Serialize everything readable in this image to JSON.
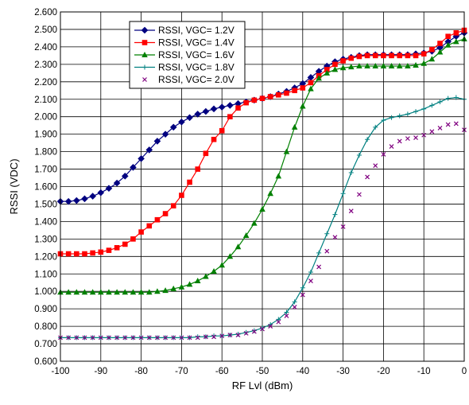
{
  "chart_data": {
    "type": "line",
    "title": "",
    "xlabel": "RF Lvl (dBm)",
    "ylabel": "RSSI (VDC)",
    "xlim": [
      -100,
      0
    ],
    "ylim": [
      0.6,
      2.6
    ],
    "x_ticks": [
      "-100",
      "-90",
      "-80",
      "-70",
      "-60",
      "-50",
      "-40",
      "-30",
      "-20",
      "-10",
      "0"
    ],
    "y_ticks": [
      "0.600",
      "0.700",
      "0.800",
      "0.900",
      "1.000",
      "1.100",
      "1.200",
      "1.300",
      "1.400",
      "1.500",
      "1.600",
      "1.700",
      "1.800",
      "1.900",
      "2.000",
      "2.100",
      "2.200",
      "2.300",
      "2.400",
      "2.500",
      "2.600"
    ],
    "grid": true,
    "legend_position": "top-left",
    "x": [
      -100,
      -98,
      -96,
      -94,
      -92,
      -90,
      -88,
      -86,
      -84,
      -82,
      -80,
      -78,
      -76,
      -74,
      -72,
      -70,
      -68,
      -66,
      -64,
      -62,
      -60,
      -58,
      -56,
      -54,
      -52,
      -50,
      -48,
      -46,
      -44,
      -42,
      -40,
      -38,
      -36,
      -34,
      -32,
      -30,
      -28,
      -26,
      -24,
      -22,
      -20,
      -18,
      -16,
      -14,
      -12,
      -10,
      -8,
      -6,
      -4,
      -2,
      0
    ],
    "series": [
      {
        "name": "RSSI, VGC= 1.2V",
        "color": "#000080",
        "marker": "diamond",
        "line": true,
        "values": [
          1.515,
          1.515,
          1.52,
          1.53,
          1.545,
          1.565,
          1.59,
          1.62,
          1.66,
          1.71,
          1.76,
          1.81,
          1.86,
          1.9,
          1.94,
          1.97,
          1.995,
          2.015,
          2.03,
          2.045,
          2.055,
          2.065,
          2.075,
          2.085,
          2.095,
          2.105,
          2.115,
          2.13,
          2.145,
          2.165,
          2.19,
          2.225,
          2.26,
          2.29,
          2.315,
          2.33,
          2.34,
          2.35,
          2.355,
          2.355,
          2.355,
          2.355,
          2.355,
          2.355,
          2.36,
          2.365,
          2.375,
          2.395,
          2.43,
          2.46,
          2.48
        ]
      },
      {
        "name": "RSSI, VGC= 1.4V",
        "color": "#ff0000",
        "marker": "square",
        "line": true,
        "values": [
          1.215,
          1.215,
          1.215,
          1.215,
          1.22,
          1.225,
          1.235,
          1.25,
          1.27,
          1.3,
          1.34,
          1.375,
          1.41,
          1.445,
          1.49,
          1.55,
          1.625,
          1.7,
          1.79,
          1.87,
          1.92,
          2.0,
          2.05,
          2.08,
          2.095,
          2.105,
          2.115,
          2.125,
          2.135,
          2.15,
          2.165,
          2.195,
          2.235,
          2.27,
          2.3,
          2.32,
          2.335,
          2.345,
          2.35,
          2.35,
          2.35,
          2.35,
          2.35,
          2.35,
          2.35,
          2.36,
          2.385,
          2.42,
          2.46,
          2.48,
          2.495
        ]
      },
      {
        "name": "RSSI, VGC= 1.6V",
        "color": "#008000",
        "marker": "triangle",
        "line": true,
        "values": [
          0.995,
          0.995,
          0.995,
          0.995,
          0.995,
          0.995,
          0.995,
          0.995,
          0.995,
          0.995,
          0.995,
          0.995,
          1.0,
          1.005,
          1.015,
          1.025,
          1.04,
          1.06,
          1.085,
          1.115,
          1.15,
          1.2,
          1.255,
          1.32,
          1.39,
          1.47,
          1.56,
          1.66,
          1.8,
          1.94,
          2.06,
          2.16,
          2.22,
          2.25,
          2.27,
          2.28,
          2.285,
          2.29,
          2.29,
          2.29,
          2.29,
          2.29,
          2.29,
          2.29,
          2.295,
          2.305,
          2.33,
          2.37,
          2.41,
          2.43,
          2.445
        ]
      },
      {
        "name": "RSSI, VGC= 1.8V",
        "color": "#008080",
        "marker": "plus",
        "line": true,
        "values": [
          0.735,
          0.735,
          0.735,
          0.735,
          0.735,
          0.735,
          0.735,
          0.735,
          0.735,
          0.735,
          0.735,
          0.735,
          0.735,
          0.735,
          0.735,
          0.735,
          0.735,
          0.74,
          0.74,
          0.745,
          0.745,
          0.75,
          0.755,
          0.765,
          0.775,
          0.79,
          0.81,
          0.84,
          0.88,
          0.94,
          1.02,
          1.11,
          1.22,
          1.33,
          1.44,
          1.56,
          1.68,
          1.78,
          1.87,
          1.94,
          1.98,
          1.995,
          2.005,
          2.015,
          2.03,
          2.045,
          2.065,
          2.085,
          2.105,
          2.11,
          2.1
        ]
      },
      {
        "name": "RSSI, VGC= 2.0V",
        "color": "#800080",
        "marker": "x",
        "line": false,
        "values": [
          0.735,
          0.735,
          0.735,
          0.735,
          0.735,
          0.735,
          0.735,
          0.735,
          0.735,
          0.735,
          0.735,
          0.735,
          0.735,
          0.735,
          0.735,
          0.735,
          0.735,
          0.735,
          0.74,
          0.74,
          0.745,
          0.75,
          0.75,
          0.76,
          0.77,
          0.785,
          0.8,
          0.825,
          0.86,
          0.91,
          0.98,
          1.06,
          1.14,
          1.23,
          1.31,
          1.37,
          1.46,
          1.555,
          1.655,
          1.72,
          1.785,
          1.83,
          1.86,
          1.875,
          1.88,
          1.895,
          1.915,
          1.935,
          1.955,
          1.96,
          1.925
        ]
      }
    ]
  }
}
